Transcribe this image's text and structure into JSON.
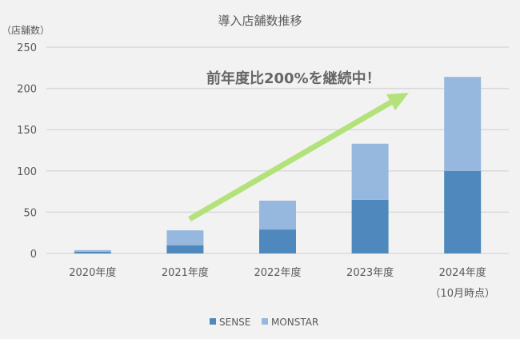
{
  "chart_data": {
    "type": "bar",
    "stacked": true,
    "title": "導入店舗数推移",
    "ylabel": "（店舗数）",
    "xlabel": "",
    "ylim": [
      0,
      250
    ],
    "yticks": [
      0,
      50,
      100,
      150,
      200,
      250
    ],
    "grid": true,
    "legend": "bottom",
    "categories": [
      "2020年度",
      "2021年度",
      "2022年度",
      "2023年度",
      "2024年度"
    ],
    "category_sublabels": [
      "",
      "",
      "",
      "",
      "（10月時点）"
    ],
    "series": [
      {
        "name": "SENSE",
        "color": "#4e88bc",
        "values": [
          2,
          10,
          29,
          65,
          100
        ]
      },
      {
        "name": "MONSTAR",
        "color": "#96b8de",
        "values": [
          2,
          18,
          35,
          68,
          114
        ]
      }
    ],
    "annotation": {
      "text": "前年度比200%を継続中！",
      "arrow_color": "#b3e27a"
    }
  }
}
